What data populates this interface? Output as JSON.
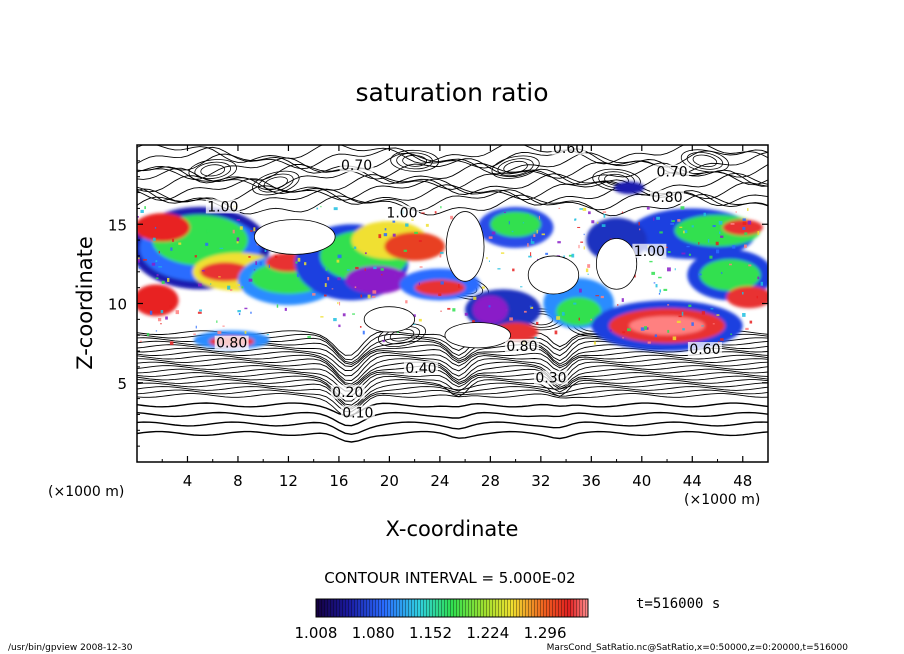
{
  "chart_data": {
    "type": "heatmap",
    "title": "saturation ratio",
    "xlabel": "X-coordinate",
    "ylabel": "Z-coordinate",
    "x_unit": "(×1000 m)",
    "y_unit": "(×1000 m)",
    "xlim": [
      0,
      50
    ],
    "ylim": [
      0,
      20
    ],
    "x_ticks": [
      4,
      8,
      12,
      16,
      20,
      24,
      28,
      32,
      36,
      40,
      44,
      48
    ],
    "y_ticks": [
      5,
      10,
      15
    ],
    "contour_labels": [
      {
        "text": "0.10",
        "x": 17.5,
        "z": 3.0
      },
      {
        "text": "0.20",
        "x": 16.7,
        "z": 4.3
      },
      {
        "text": "0.30",
        "x": 32.8,
        "z": 5.2
      },
      {
        "text": "0.40",
        "x": 22.5,
        "z": 5.8
      },
      {
        "text": "0.80",
        "x": 7.5,
        "z": 7.4
      },
      {
        "text": "0.80",
        "x": 30.5,
        "z": 7.2
      },
      {
        "text": "0.60",
        "x": 45.0,
        "z": 7.0
      },
      {
        "text": "1.00",
        "x": 6.8,
        "z": 16.0
      },
      {
        "text": "1.00",
        "x": 21.0,
        "z": 15.6
      },
      {
        "text": "1.00",
        "x": 40.6,
        "z": 13.2
      },
      {
        "text": "0.70",
        "x": 17.4,
        "z": 18.6
      },
      {
        "text": "0.60",
        "x": 34.2,
        "z": 19.7
      },
      {
        "text": "0.70",
        "x": 42.4,
        "z": 18.2
      },
      {
        "text": "0.80",
        "x": 42.0,
        "z": 16.6
      }
    ],
    "contour_interval_label": "CONTOUR INTERVAL = 5.000E-02",
    "colorbar": {
      "tick_labels": [
        "1.008",
        "1.080",
        "1.152",
        "1.224",
        "1.296"
      ],
      "range": [
        1.008,
        1.35
      ]
    },
    "time_label": "t=516000 s",
    "footer_left": "/usr/bin/gpview  2008-12-30",
    "footer_right": "MarsCond_SatRatio.nc@SatRatio,x=0:50000,z=0:20000,t=516000",
    "grid": false,
    "legend": "colorbar bottom"
  },
  "colors": {
    "low": "#1a0a6e",
    "mid_blue": "#2a5cff",
    "green": "#3aff5a",
    "yellow": "#f4f040",
    "red": "#e82020",
    "pink": "#ff8080",
    "purple": "#8a1ec8"
  }
}
